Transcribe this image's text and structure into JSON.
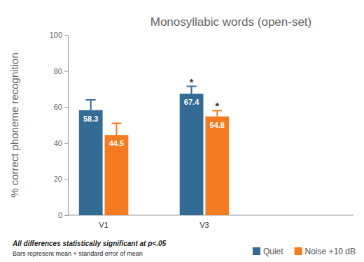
{
  "chart_data": {
    "type": "bar",
    "title": "Monosyllabic words (open-set)",
    "y_label": "% correct phoneme recognition",
    "categories": [
      "V1",
      "V3"
    ],
    "series": [
      {
        "name": "Quiet",
        "color": "#336b94",
        "values": [
          58.3,
          67.4
        ],
        "errors": [
          5.7,
          4.1
        ]
      },
      {
        "name": "Noise +10 dB",
        "color": "#f47b20",
        "values": [
          44.5,
          54.8
        ],
        "errors": [
          6.5,
          3.2
        ]
      }
    ],
    "ylim": [
      0,
      100
    ],
    "yticks": [
      0,
      20,
      40,
      60,
      80,
      100
    ],
    "grid": false,
    "legend": "bottom-right",
    "data_labels": true,
    "annotations": [
      {
        "text": "*",
        "category": "V3",
        "series": "Quiet"
      },
      {
        "text": "*",
        "category": "V3",
        "series": "Noise +10 dB"
      }
    ],
    "footnotes": [
      "All differences statistically significant at p<.05",
      "Bars represent mean + standard error of mean"
    ]
  }
}
